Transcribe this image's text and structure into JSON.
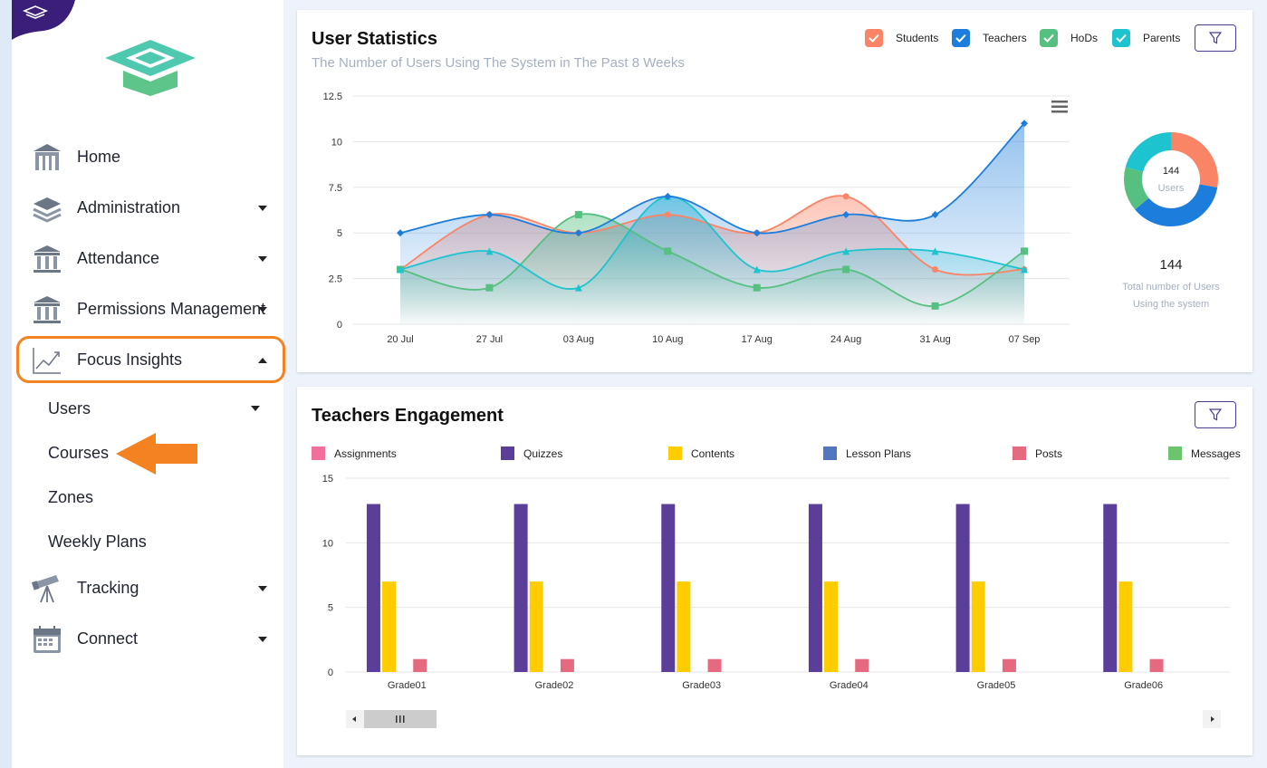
{
  "colors": {
    "accent": "#4a3d8f",
    "students": "#fa8466",
    "teachers": "#1c7ddc",
    "hods": "#56c080",
    "parents": "#1dc3cf",
    "assignments": "#f26e9b",
    "quizzes": "#5b3e99",
    "contents": "#ffcc00",
    "lesson_plans": "#5376c0",
    "posts": "#e5697f",
    "messages": "#6cc46c",
    "highlight": "#f58220"
  },
  "sidebar": {
    "items": [
      {
        "label": "Home",
        "icon": "building-icon"
      },
      {
        "label": "Administration",
        "icon": "layers-icon"
      },
      {
        "label": "Attendance",
        "icon": "columns-icon"
      },
      {
        "label": "Permissions Management",
        "icon": "columns-icon"
      },
      {
        "label": "Focus Insights",
        "icon": "chart-line-icon"
      }
    ],
    "sub_items": [
      {
        "label": "Users"
      },
      {
        "label": "Courses"
      },
      {
        "label": "Zones"
      },
      {
        "label": "Weekly Plans"
      }
    ],
    "bottom_items": [
      {
        "label": "Tracking",
        "icon": "telescope-icon"
      },
      {
        "label": "Connect",
        "icon": "calendar-icon"
      }
    ]
  },
  "user_stats": {
    "title": "User Statistics",
    "subtitle": "The Number of Users Using The System in The Past 8 Weeks",
    "legend": [
      "Students",
      "Teachers",
      "HoDs",
      "Parents"
    ],
    "donut": {
      "center_value": "144",
      "center_label": "Users",
      "total": "144",
      "caption_line1": "Total number of Users",
      "caption_line2": "Using the system"
    }
  },
  "engagement": {
    "title": "Teachers Engagement",
    "legend": [
      "Assignments",
      "Quizzes",
      "Contents",
      "Lesson Plans",
      "Posts",
      "Messages"
    ]
  },
  "chart_data": [
    {
      "type": "area",
      "x": [
        "20 Jul",
        "27 Jul",
        "03 Aug",
        "10 Aug",
        "17 Aug",
        "24 Aug",
        "31 Aug",
        "07 Sep"
      ],
      "ylim": [
        0,
        12.5
      ],
      "yticks": [
        "0",
        "2.5",
        "5",
        "7.5",
        "10",
        "12.5"
      ],
      "grid": true,
      "legend_position": "top-right",
      "series": [
        {
          "name": "Students",
          "values": [
            3,
            6,
            5,
            6,
            5,
            7,
            3,
            3
          ]
        },
        {
          "name": "Teachers",
          "values": [
            5,
            6,
            5,
            7,
            5,
            6,
            6,
            11
          ]
        },
        {
          "name": "HoDs",
          "values": [
            3,
            2,
            6,
            4,
            2,
            3,
            1,
            4
          ]
        },
        {
          "name": "Parents",
          "values": [
            3,
            4,
            2,
            7,
            3,
            4,
            4,
            3
          ]
        }
      ]
    },
    {
      "type": "pie",
      "categories": [
        "Students",
        "Teachers",
        "HoDs",
        "Parents"
      ],
      "values": [
        40,
        52,
        22,
        30
      ]
    },
    {
      "type": "bar",
      "categories": [
        "Grade01",
        "Grade02",
        "Grade03",
        "Grade04",
        "Grade05",
        "Grade06"
      ],
      "ylim": [
        0,
        15
      ],
      "yticks": [
        "0",
        "5",
        "10",
        "15"
      ],
      "grid": true,
      "legend_position": "top",
      "series": [
        {
          "name": "Assignments",
          "values": [
            0,
            0,
            0,
            0,
            0,
            0
          ]
        },
        {
          "name": "Quizzes",
          "values": [
            13,
            13,
            13,
            13,
            13,
            13
          ]
        },
        {
          "name": "Contents",
          "values": [
            7,
            7,
            7,
            7,
            7,
            7
          ]
        },
        {
          "name": "Lesson Plans",
          "values": [
            0,
            0,
            0,
            0,
            0,
            0
          ]
        },
        {
          "name": "Posts",
          "values": [
            1,
            1,
            1,
            1,
            1,
            1
          ]
        },
        {
          "name": "Messages",
          "values": [
            0,
            0,
            0,
            0,
            0,
            0
          ]
        }
      ]
    }
  ]
}
